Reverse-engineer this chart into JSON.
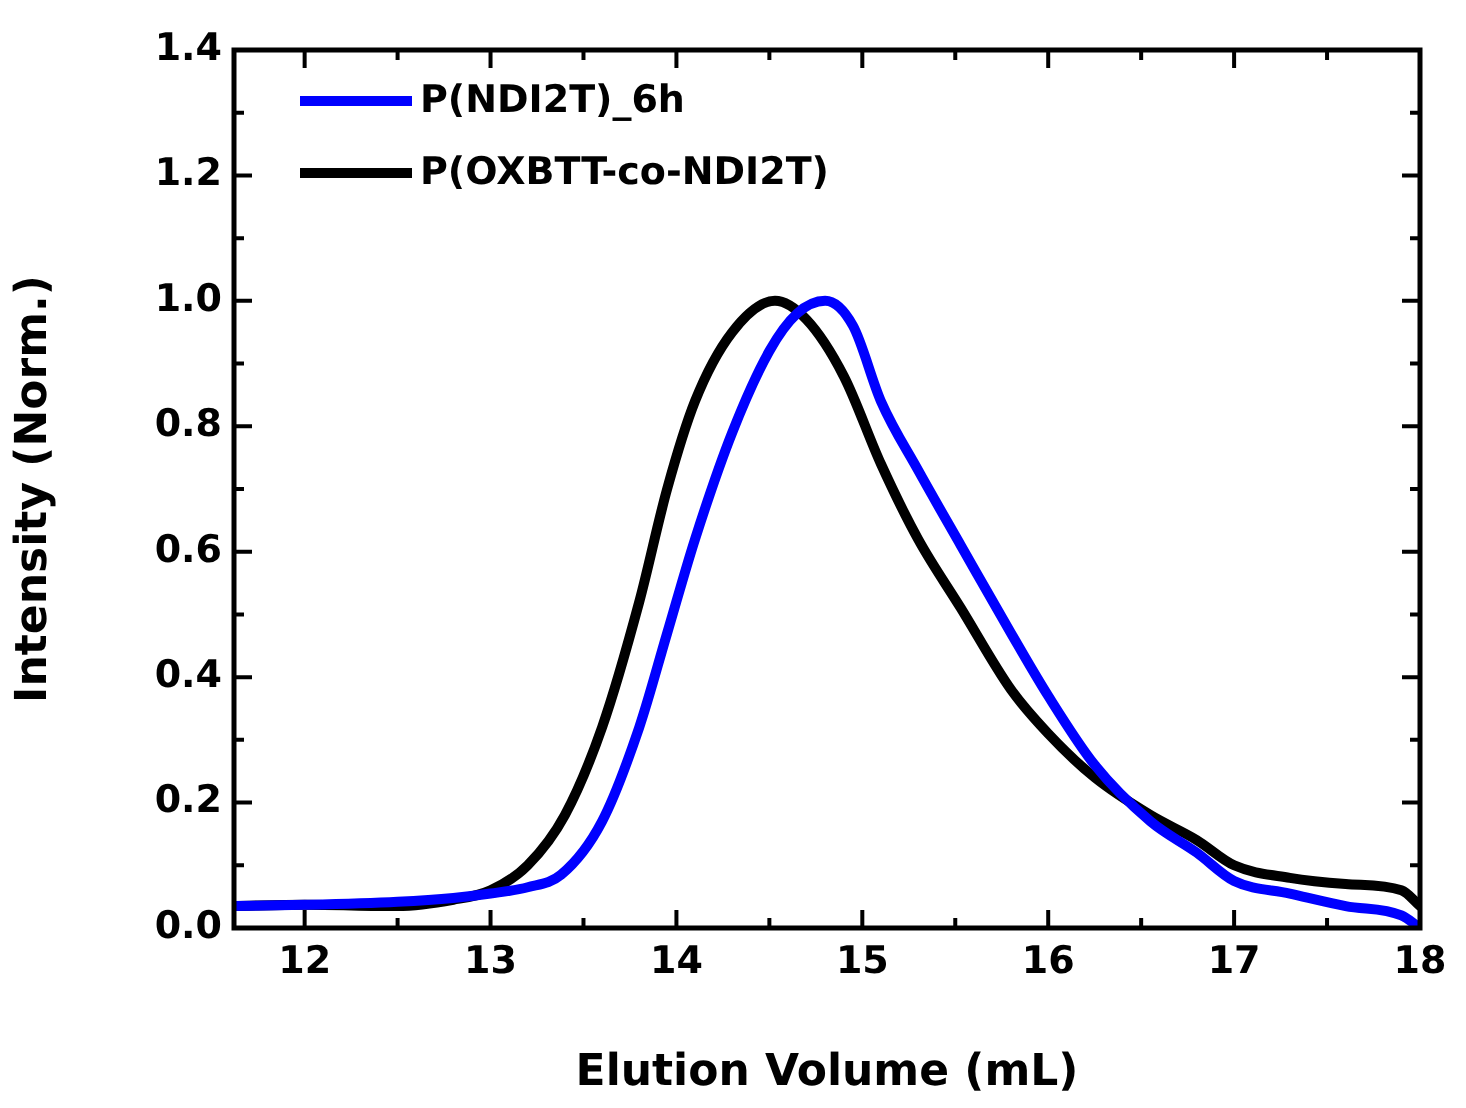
{
  "chart_data": {
    "type": "line",
    "xlabel": "Elution Volume (mL)",
    "ylabel": "Intensity (Norm.)",
    "xlim": [
      11.62,
      18
    ],
    "xticks": [
      12,
      13,
      14,
      15,
      16,
      17,
      18
    ],
    "ylim": [
      0,
      1.4
    ],
    "yticks": [
      {
        "value": 0,
        "label": "0.0"
      },
      0.2,
      0.4,
      0.6,
      0.8,
      {
        "value": 1,
        "label": "1.0"
      },
      1.2,
      1.4
    ],
    "legend": "top left",
    "grid": false,
    "marker": "none",
    "line_style": "solid",
    "series": [
      {
        "name": "P(NDI2T)_6h",
        "color": "#0000ff",
        "x": [
          11.62,
          12,
          12.5,
          12.8,
          13,
          13.2,
          13.38,
          13.6,
          13.8,
          13.95,
          14.1,
          14.3,
          14.5,
          14.65,
          14.8,
          14.95,
          15.1,
          15.3,
          15.53,
          15.8,
          16.0,
          16.25,
          16.55,
          16.8,
          17,
          17.3,
          17.6,
          17.9,
          18
        ],
        "values": [
          0.035,
          0.037,
          0.042,
          0.048,
          0.055,
          0.065,
          0.085,
          0.17,
          0.32,
          0.47,
          0.62,
          0.79,
          0.92,
          0.98,
          1.0,
          0.96,
          0.84,
          0.73,
          0.61,
          0.47,
          0.37,
          0.26,
          0.17,
          0.12,
          0.075,
          0.055,
          0.035,
          0.02,
          0.0
        ]
      },
      {
        "name": "P(OXBTT-co-NDI2T)",
        "color": "#000000",
        "x": [
          11.62,
          12,
          12.5,
          12.8,
          13,
          13.2,
          13.4,
          13.6,
          13.8,
          13.95,
          14.1,
          14.3,
          14.53,
          14.7,
          14.9,
          15.1,
          15.3,
          15.53,
          15.8,
          16.0,
          16.25,
          16.55,
          16.8,
          17,
          17.3,
          17.6,
          17.9,
          18
        ],
        "values": [
          0.035,
          0.037,
          0.035,
          0.045,
          0.06,
          0.1,
          0.18,
          0.32,
          0.52,
          0.7,
          0.84,
          0.95,
          1.0,
          0.97,
          0.88,
          0.74,
          0.62,
          0.51,
          0.38,
          0.31,
          0.24,
          0.18,
          0.14,
          0.1,
          0.08,
          0.07,
          0.06,
          0.035
        ]
      }
    ]
  }
}
